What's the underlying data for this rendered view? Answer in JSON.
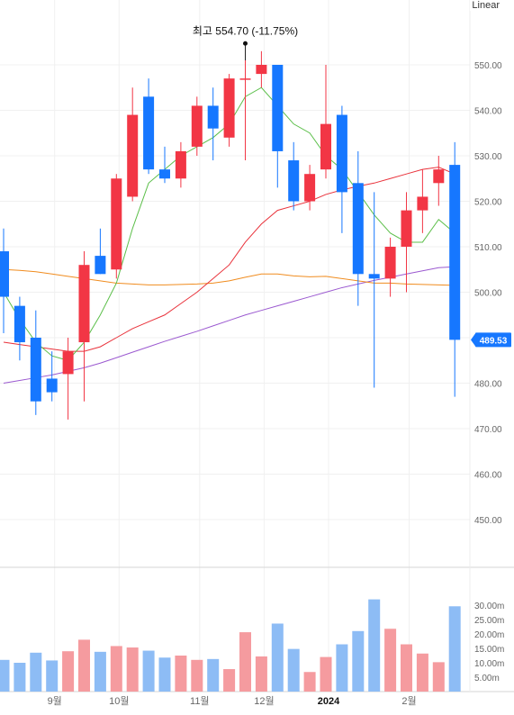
{
  "scale_mode": "Linear",
  "colors": {
    "up": "#f23645",
    "down": "#1677ff",
    "vol_up": "#f59b9f",
    "vol_down": "#8dbcf5",
    "ma5": "#5cbf4a",
    "ma20": "#e9323b",
    "ma60": "#f08c1f",
    "ma120": "#9b59d0",
    "grid": "#f0f0f0",
    "label_current": "#1677ff"
  },
  "chart_data": {
    "type": "candlestick",
    "price_axis": {
      "min": 440,
      "max": 560,
      "ticks": [
        "450.00",
        "460.00",
        "470.00",
        "480.00",
        "490.00",
        "500.00",
        "510.00",
        "520.00",
        "530.00",
        "540.00",
        "550.00"
      ]
    },
    "volume_axis": {
      "max": 35,
      "ticks": [
        "5.00m",
        "10.00m",
        "15.00m",
        "20.00m",
        "25.00m",
        "30.00m"
      ]
    },
    "x_labels": [
      {
        "label": "9월",
        "index": 3
      },
      {
        "label": "10월",
        "index": 7
      },
      {
        "label": "11월",
        "index": 12
      },
      {
        "label": "12월",
        "index": 16
      },
      {
        "label": "2024",
        "index": 20
      },
      {
        "label": "2월",
        "index": 25
      }
    ],
    "candles": [
      {
        "o": 509,
        "h": 514,
        "l": 491,
        "c": 499
      },
      {
        "o": 497,
        "h": 499,
        "l": 485,
        "c": 489
      },
      {
        "o": 490,
        "h": 496,
        "l": 473,
        "c": 476
      },
      {
        "o": 481,
        "h": 487,
        "l": 476,
        "c": 478
      },
      {
        "o": 482,
        "h": 490,
        "l": 472,
        "c": 487
      },
      {
        "o": 489,
        "h": 509,
        "l": 476,
        "c": 506
      },
      {
        "o": 508,
        "h": 514,
        "l": 504,
        "c": 504
      },
      {
        "o": 505,
        "h": 526,
        "l": 503,
        "c": 525
      },
      {
        "o": 521,
        "h": 545,
        "l": 520,
        "c": 539
      },
      {
        "o": 543,
        "h": 547,
        "l": 526,
        "c": 527
      },
      {
        "o": 527,
        "h": 532,
        "l": 524,
        "c": 525
      },
      {
        "o": 525,
        "h": 533,
        "l": 523,
        "c": 531
      },
      {
        "o": 532,
        "h": 543,
        "l": 530,
        "c": 541
      },
      {
        "o": 541,
        "h": 545,
        "l": 529,
        "c": 536
      },
      {
        "o": 534,
        "h": 548,
        "l": 532,
        "c": 547
      },
      {
        "o": 547,
        "h": 551,
        "l": 529,
        "c": 547
      },
      {
        "o": 548,
        "h": 553,
        "l": 545,
        "c": 550
      },
      {
        "o": 550,
        "h": 550,
        "l": 523,
        "c": 531
      },
      {
        "o": 529,
        "h": 533,
        "l": 518,
        "c": 520
      },
      {
        "o": 520,
        "h": 528,
        "l": 518,
        "c": 526
      },
      {
        "o": 527,
        "h": 550,
        "l": 525,
        "c": 537
      },
      {
        "o": 539,
        "h": 541,
        "l": 513,
        "c": 522
      },
      {
        "o": 524,
        "h": 531,
        "l": 497,
        "c": 504
      },
      {
        "o": 504,
        "h": 522,
        "l": 479,
        "c": 503
      },
      {
        "o": 503,
        "h": 512,
        "l": 499,
        "c": 510
      },
      {
        "o": 510,
        "h": 522,
        "l": 500,
        "c": 518
      },
      {
        "o": 518,
        "h": 527,
        "l": 513,
        "c": 521
      },
      {
        "o": 524,
        "h": 530,
        "l": 519,
        "c": 527
      },
      {
        "o": 528,
        "h": 533,
        "l": 477,
        "c": 489.53
      }
    ],
    "volumes": [
      11,
      10,
      13.5,
      10.8,
      14,
      18,
      13.8,
      15.8,
      15.3,
      14.2,
      11.8,
      12.5,
      11,
      11.3,
      7.8,
      20.6,
      12.2,
      23.6,
      14.8,
      6.8,
      12,
      16.4,
      21,
      32,
      21.8,
      16.4,
      13.2,
      10.2,
      29.6
    ],
    "ma5": [
      500,
      494,
      489,
      486,
      485,
      489,
      495,
      502,
      514,
      524,
      527,
      530,
      532,
      534,
      537,
      543,
      545,
      541,
      537,
      535,
      530,
      527,
      522,
      517,
      513,
      511,
      511,
      516,
      513
    ],
    "ma20": [
      489,
      488.5,
      488,
      487.5,
      487,
      487,
      488,
      490,
      492,
      493.5,
      495,
      497.5,
      500,
      503,
      506,
      511,
      515,
      518,
      519,
      520,
      521.5,
      522.5,
      523.3,
      524,
      525,
      526,
      527,
      527.5,
      526
    ],
    "ma60": [
      505,
      504.8,
      504.5,
      504,
      503.5,
      503,
      502.5,
      502,
      501.8,
      501.6,
      501.6,
      501.7,
      501.8,
      502,
      502.5,
      503.3,
      504,
      504,
      503.6,
      503.4,
      503.5,
      503,
      502.5,
      502,
      502,
      501.8,
      501.7,
      501.6,
      501.5
    ],
    "ma120": [
      480,
      480.6,
      481.2,
      481.8,
      482.6,
      483.4,
      484.4,
      485.6,
      486.8,
      488,
      489.2,
      490.3,
      491.4,
      492.6,
      493.8,
      495,
      496,
      497,
      498,
      499,
      500,
      501,
      501.8,
      502.6,
      503.3,
      504,
      504.7,
      505.4,
      505.6
    ],
    "annotation_high": {
      "index": 15,
      "price": 554.7,
      "text": "최고 554.70 (-11.75%)"
    },
    "current_price_label": "489.53"
  }
}
